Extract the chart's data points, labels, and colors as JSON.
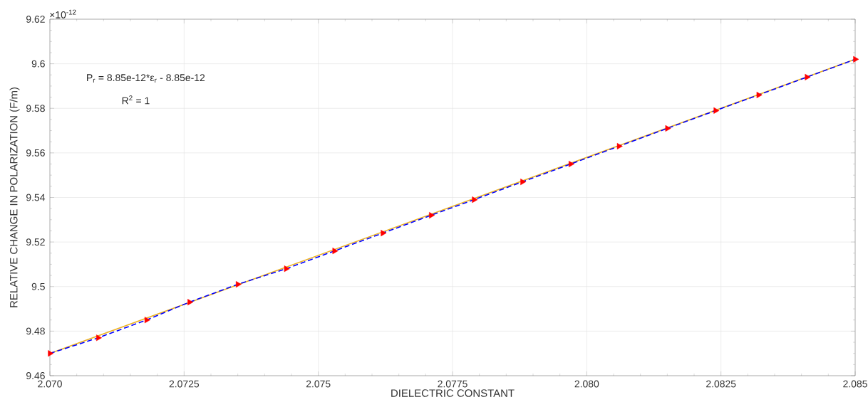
{
  "chart_data": {
    "type": "line",
    "xlabel": "DIELECTRIC CONSTANT",
    "ylabel": "RELATIVE CHANGE IN POLARIZATION (F/m)",
    "annotations": [
      "×10$^{-12}$",
      "P$_{r}$ = 8.85e-12*ε$_{r}$ - 8.85e-12",
      "R$^{2}$ = 1"
    ],
    "x": [
      2.07,
      2.0709,
      2.0718,
      2.0726,
      2.0735,
      2.0744,
      2.0753,
      2.0762,
      2.0771,
      2.0779,
      2.0788,
      2.0797,
      2.0806,
      2.0815,
      2.0824,
      2.0832,
      2.0841,
      2.085
    ],
    "series": [
      {
        "color": "#edb120",
        "line_style": "solid",
        "marker": "none",
        "x": [
          2.07,
          2.085
        ],
        "values": [
          9.47,
          9.602
        ]
      },
      {
        "color": "#0000ff",
        "line_style": "dashed",
        "marker": "none",
        "values": [
          9.47,
          9.477,
          9.485,
          9.493,
          9.501,
          9.508,
          9.516,
          9.524,
          9.532,
          9.539,
          9.547,
          9.555,
          9.563,
          9.571,
          9.579,
          9.586,
          9.594,
          9.602
        ]
      },
      {
        "type": "scatter",
        "color": "#ff0000",
        "marker": "triangle",
        "values": [
          9.47,
          9.477,
          9.485,
          9.493,
          9.501,
          9.508,
          9.516,
          9.524,
          9.532,
          9.539,
          9.547,
          9.555,
          9.563,
          9.571,
          9.579,
          9.586,
          9.594,
          9.602
        ]
      }
    ],
    "xlim": [
      2.07,
      2.085
    ],
    "xticks": [
      {
        "value": 2.07,
        "label": "2.070"
      },
      2.0725,
      2.075,
      2.0775,
      {
        "value": 2.08,
        "label": "2.080"
      },
      2.0825,
      2.085
    ],
    "ylim": [
      9.46,
      9.62
    ],
    "yticks": [
      9.46,
      9.48,
      9.5,
      9.52,
      9.54,
      9.56,
      9.58,
      9.6,
      9.62
    ],
    "grid": true
  }
}
